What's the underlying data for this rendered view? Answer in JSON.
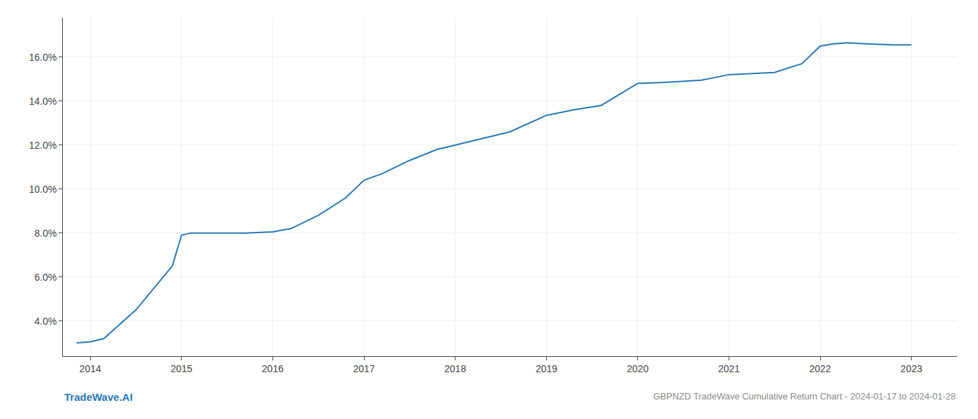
{
  "chart_data": {
    "type": "line",
    "title": "GBPNZD TradeWave Cumulative Return Chart - 2024-01-17 to 2024-01-28",
    "annotations": [
      "TradeWave.AI"
    ],
    "color": "#2878b5",
    "x": [
      2013.85,
      2014.0,
      2014.15,
      2014.5,
      2014.9,
      2015.0,
      2015.1,
      2015.3,
      2015.5,
      2015.7,
      2016.0,
      2016.2,
      2016.5,
      2016.8,
      2017.0,
      2017.2,
      2017.5,
      2017.8,
      2018.0,
      2018.3,
      2018.6,
      2019.0,
      2019.3,
      2019.6,
      2020.0,
      2020.3,
      2020.5,
      2020.7,
      2021.0,
      2021.3,
      2021.5,
      2021.8,
      2022.0,
      2022.15,
      2022.3,
      2022.5,
      2022.8,
      2023.0
    ],
    "values": [
      3.0,
      3.05,
      3.2,
      4.5,
      6.5,
      7.9,
      8.0,
      8.0,
      8.0,
      8.0,
      8.05,
      8.2,
      8.8,
      9.6,
      10.4,
      10.7,
      11.3,
      11.8,
      12.0,
      12.3,
      12.6,
      13.35,
      13.6,
      13.8,
      14.8,
      14.85,
      14.9,
      14.95,
      15.2,
      15.25,
      15.3,
      15.7,
      16.5,
      16.6,
      16.65,
      16.6,
      16.55,
      16.55
    ],
    "xlim": [
      2013.7,
      2023.5
    ],
    "xticks": [
      2014,
      2015,
      2016,
      2017,
      2018,
      2019,
      2020,
      2021,
      2022,
      2023
    ],
    "ylim": [
      2.4,
      17.8
    ],
    "yticks": [
      {
        "value": 4.0,
        "label": "4.0%"
      },
      {
        "value": 6.0,
        "label": "6.0%"
      },
      {
        "value": 8.0,
        "label": "8.0%"
      },
      {
        "value": 10.0,
        "label": "10.0%"
      },
      {
        "value": 12.0,
        "label": "12.0%"
      },
      {
        "value": 14.0,
        "label": "14.0%"
      },
      {
        "value": 16.0,
        "label": "16.0%"
      }
    ],
    "grid": true
  }
}
